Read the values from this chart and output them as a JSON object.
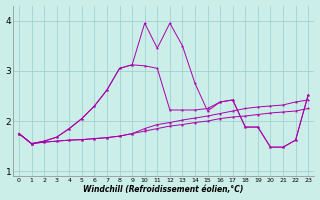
{
  "xlabel": "Windchill (Refroidissement éolien,°C)",
  "background_color": "#cceee8",
  "line_color": "#aa00aa",
  "grid_color": "#99cccc",
  "xlim": [
    -0.5,
    23.5
  ],
  "ylim": [
    0.9,
    4.3
  ],
  "yticks": [
    1,
    2,
    3,
    4
  ],
  "xticks": [
    0,
    1,
    2,
    3,
    4,
    5,
    6,
    7,
    8,
    9,
    10,
    11,
    12,
    13,
    14,
    15,
    16,
    17,
    18,
    19,
    20,
    21,
    22,
    23
  ],
  "series1_x": [
    0,
    1,
    2,
    3,
    4,
    5,
    6,
    7,
    8,
    9,
    10,
    11,
    12,
    13,
    14,
    15,
    16,
    17,
    18,
    19,
    20,
    21,
    22,
    23
  ],
  "series1_y": [
    1.75,
    1.55,
    1.58,
    1.6,
    1.62,
    1.63,
    1.65,
    1.67,
    1.7,
    1.75,
    1.8,
    1.85,
    1.9,
    1.93,
    1.97,
    2.0,
    2.05,
    2.08,
    2.1,
    2.13,
    2.16,
    2.18,
    2.2,
    2.25
  ],
  "series2_x": [
    0,
    1,
    2,
    3,
    4,
    5,
    6,
    7,
    8,
    9,
    10,
    11,
    12,
    13,
    14,
    15,
    16,
    17,
    18,
    19,
    20,
    21,
    22,
    23
  ],
  "series2_y": [
    1.75,
    1.55,
    1.58,
    1.6,
    1.62,
    1.63,
    1.65,
    1.67,
    1.7,
    1.75,
    1.85,
    1.93,
    1.97,
    2.02,
    2.06,
    2.1,
    2.15,
    2.2,
    2.25,
    2.28,
    2.3,
    2.32,
    2.38,
    2.42
  ],
  "series3_x": [
    0,
    1,
    2,
    3,
    4,
    5,
    6,
    7,
    8,
    9,
    10,
    11,
    12,
    13,
    14,
    15,
    16,
    17,
    18,
    19,
    20,
    21,
    22,
    23
  ],
  "series3_y": [
    1.75,
    1.55,
    1.6,
    1.68,
    1.85,
    2.05,
    2.3,
    2.62,
    3.05,
    3.12,
    3.95,
    3.45,
    3.95,
    3.5,
    2.75,
    2.2,
    2.38,
    2.42,
    1.88,
    1.88,
    1.48,
    1.48,
    1.62,
    2.52
  ],
  "series4_x": [
    0,
    1,
    2,
    3,
    4,
    5,
    6,
    7,
    8,
    9,
    10,
    11,
    12,
    13,
    14,
    15,
    16,
    17,
    18,
    19,
    20,
    21,
    22,
    23
  ],
  "series4_y": [
    1.75,
    1.55,
    1.6,
    1.68,
    1.85,
    2.05,
    2.3,
    2.62,
    3.05,
    3.12,
    3.1,
    3.05,
    2.22,
    2.22,
    2.22,
    2.25,
    2.38,
    2.42,
    1.88,
    1.88,
    1.48,
    1.48,
    1.62,
    2.52
  ]
}
